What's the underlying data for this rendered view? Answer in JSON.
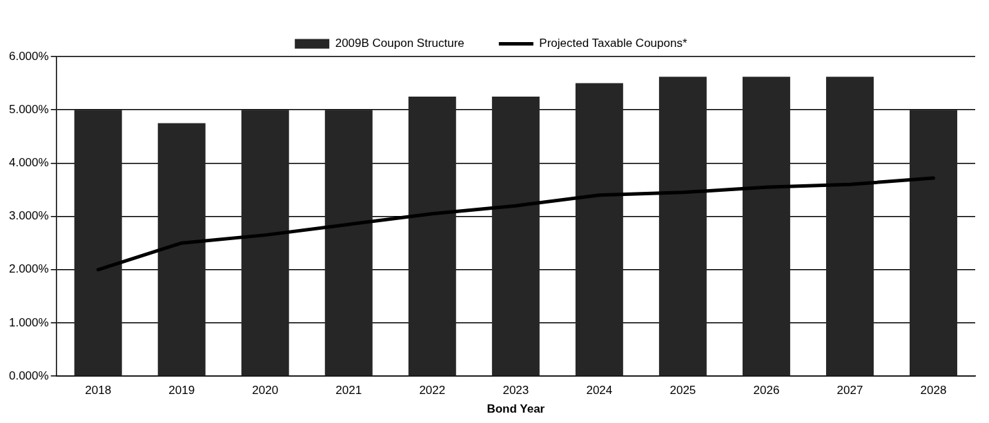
{
  "chart_data": {
    "type": "bar",
    "categories": [
      "2018",
      "2019",
      "2020",
      "2021",
      "2022",
      "2023",
      "2024",
      "2025",
      "2026",
      "2027",
      "2028"
    ],
    "series": [
      {
        "name": "2009B Coupon Structure",
        "color": "#262626",
        "values": [
          5.0,
          4.75,
          5.0,
          5.0,
          5.25,
          5.25,
          5.5,
          5.62,
          5.62,
          5.62,
          5.0
        ]
      },
      {
        "name": "Projected Taxable Coupons*",
        "type": "line",
        "color": "#000000",
        "values": [
          2.0,
          2.5,
          2.65,
          2.85,
          3.05,
          3.2,
          3.4,
          3.45,
          3.55,
          3.6,
          3.72
        ]
      }
    ],
    "xlabel": "Bond Year",
    "ylim": [
      0,
      6
    ],
    "yticks": [
      {
        "value": 0,
        "label": "0.000%"
      },
      {
        "value": 1,
        "label": "1.000%"
      },
      {
        "value": 2,
        "label": "2.000%"
      },
      {
        "value": 3,
        "label": "3.000%"
      },
      {
        "value": 4,
        "label": "4.000%"
      },
      {
        "value": 5,
        "label": "5.000%"
      },
      {
        "value": 6,
        "label": "6.000%"
      }
    ],
    "grid": "y",
    "legend": "top",
    "marker": "none",
    "line_style": "solid"
  }
}
